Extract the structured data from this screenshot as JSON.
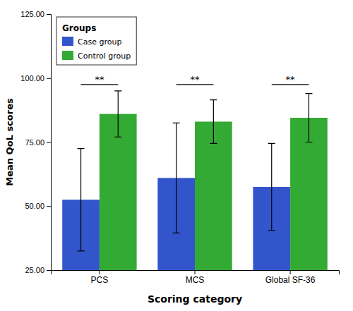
{
  "chart_data": {
    "type": "bar",
    "categories": [
      "PCS",
      "MCS",
      "Global SF-36"
    ],
    "series": [
      {
        "name": "Case group",
        "color": "#3355cc",
        "values": [
          52.5,
          61.0,
          57.5
        ],
        "errors": [
          20.0,
          21.5,
          17.0
        ]
      },
      {
        "name": "Control group",
        "color": "#33aa33",
        "values": [
          86.0,
          83.0,
          84.5
        ],
        "errors": [
          9.0,
          8.5,
          9.5
        ]
      }
    ],
    "xlabel": "Scoring category",
    "ylabel": "Mean QoL scores",
    "legend_title": "Groups",
    "legend": "upper left",
    "grid": false,
    "ylim": [
      25.0,
      125.0
    ],
    "yticks": [
      {
        "value": 25.0,
        "label": "25.00"
      },
      {
        "value": 50.0,
        "label": "50.00"
      },
      {
        "value": 75.0,
        "label": "75.00"
      },
      {
        "value": 100.0,
        "label": "100.00"
      },
      {
        "value": 125.0,
        "label": "125.00"
      }
    ],
    "annotations": [
      {
        "text": "**",
        "category": "PCS",
        "y": 97.5
      },
      {
        "text": "**",
        "category": "MCS",
        "y": 97.5
      },
      {
        "text": "**",
        "category": "Global SF-36",
        "y": 97.5
      }
    ]
  }
}
